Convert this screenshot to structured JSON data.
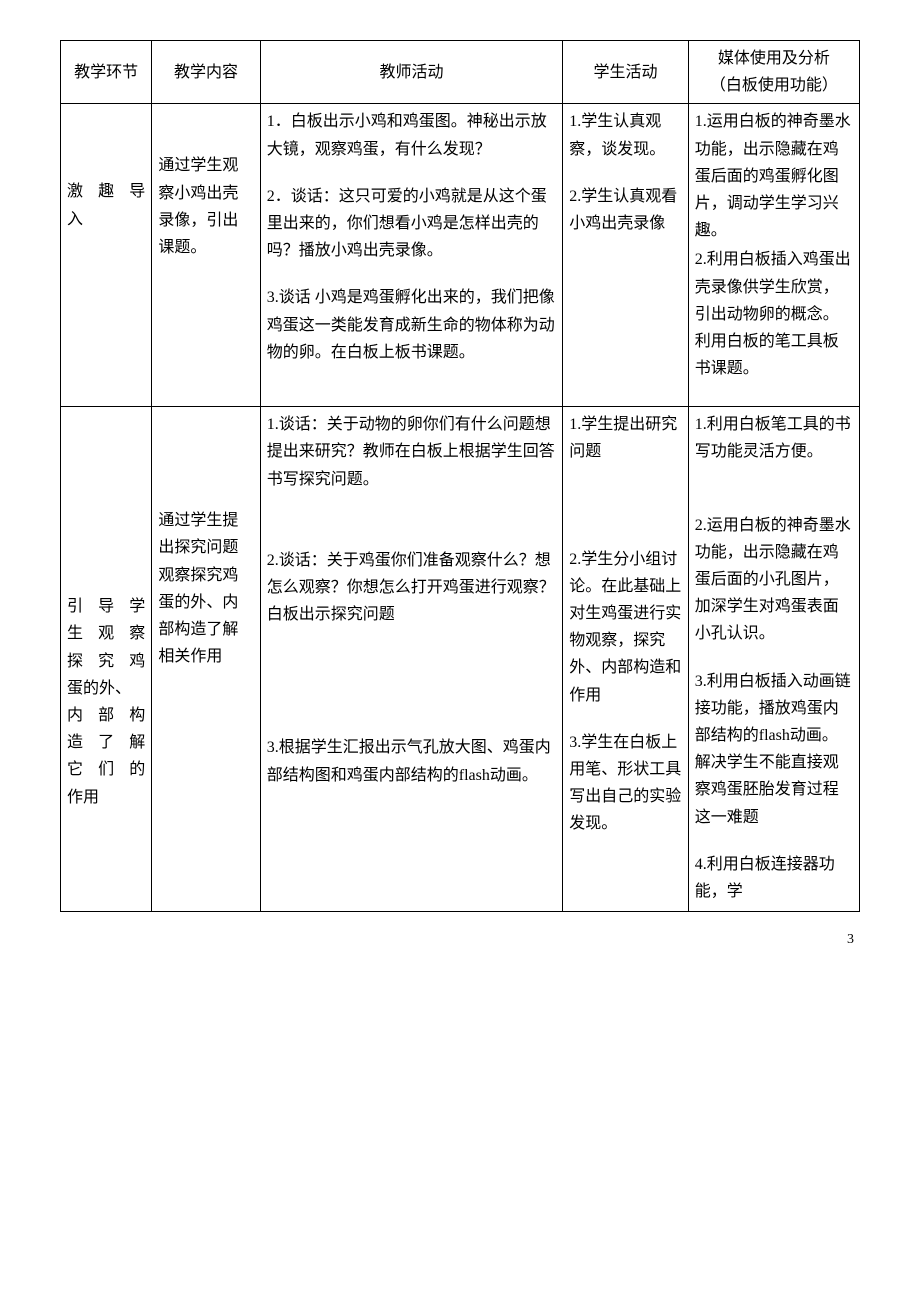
{
  "page_number": "3",
  "header": {
    "col1": "教学环节",
    "col2": "教学内容",
    "col3": "教师活动",
    "col4": "学生活动",
    "col5_line1": "媒体使用及分析",
    "col5_line2": "（白板使用功能）"
  },
  "row1": {
    "stage_l1": "激 趣 导",
    "stage_l2": "入",
    "content": "通过学生观察小鸡出壳录像，引出课题。",
    "teacher": {
      "p1": "1．白板出示小鸡和鸡蛋图。神秘出示放大镜，观察鸡蛋，有什么发现？",
      "p2": "2．谈话：这只可爱的小鸡就是从这个蛋里出来的，你们想看小鸡是怎样出壳的吗？播放小鸡出壳录像。",
      "p3": "3.谈话 小鸡是鸡蛋孵化出来的，我们把像鸡蛋这一类能发育成新生命的物体称为动物的卵。在白板上板书课题。"
    },
    "student": {
      "p1": "1.学生认真观察，谈发现。",
      "p2": "2.学生认真观看小鸡出壳录像"
    },
    "media": {
      "p1": "1.运用白板的神奇墨水功能，出示隐藏在鸡蛋后面的鸡蛋孵化图片，调动学生学习兴趣。",
      "p2": "2.利用白板插入鸡蛋出壳录像供学生欣赏，引出动物卵的概念。利用白板的笔工具板书课题。"
    }
  },
  "row2": {
    "stage_l1": "引 导 学",
    "stage_l2": "生 观 察",
    "stage_l3": "探 究 鸡",
    "stage_l4": "蛋的外、",
    "stage_l5": "内 部 构",
    "stage_l6": "造 了 解",
    "stage_l7": "它 们 的",
    "stage_l8": "作用",
    "content": "通过学生提出探究问题观察探究鸡蛋的外、内部构造了解相关作用",
    "teacher": {
      "p1": "1.谈话：关于动物的卵你们有什么问题想提出来研究？教师在白板上根据学生回答书写探究问题。",
      "p2": "2.谈话：关于鸡蛋你们准备观察什么？想怎么观察？你想怎么打开鸡蛋进行观察？白板出示探究问题",
      "p3": "3.根据学生汇报出示气孔放大图、鸡蛋内部结构图和鸡蛋内部结构的flash动画。"
    },
    "student": {
      "p1": "1.学生提出研究问题",
      "p2": "2.学生分小组讨论。在此基础上对生鸡蛋进行实物观察，探究外、内部构造和作用",
      "p3": "3.学生在白板上用笔、形状工具写出自己的实验发现。"
    },
    "media": {
      "p1": "1.利用白板笔工具的书写功能灵活方便。",
      "p2": "2.运用白板的神奇墨水功能，出示隐藏在鸡蛋后面的小孔图片，加深学生对鸡蛋表面小孔认识。",
      "p3": "3.利用白板插入动画链接功能，播放鸡蛋内部结构的flash动画。解决学生不能直接观察鸡蛋胚胎发育过程这一难题",
      "p4": "4.利用白板连接器功能，学"
    }
  }
}
